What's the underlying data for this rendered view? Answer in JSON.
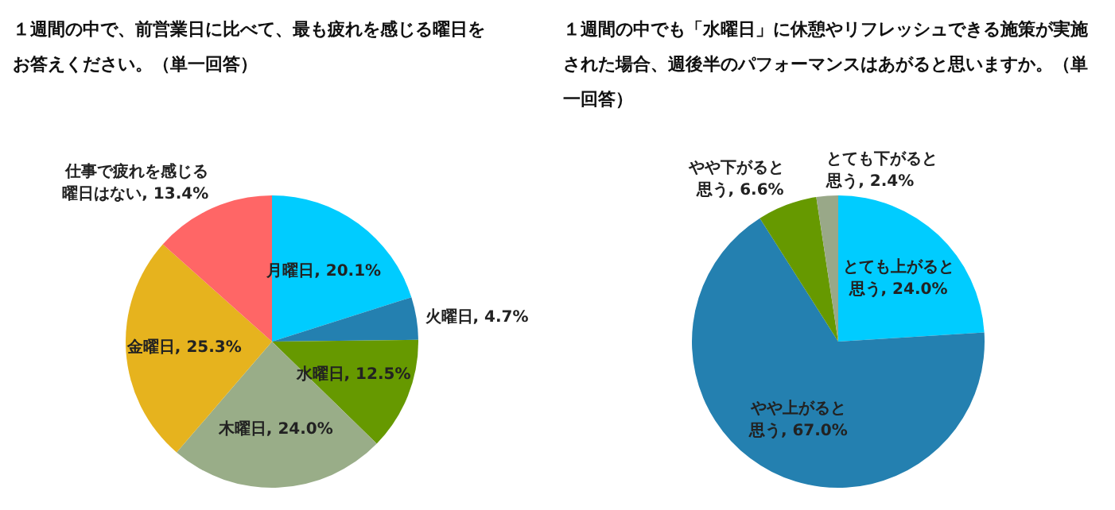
{
  "chart_data": [
    {
      "type": "pie",
      "title": "１週間の中で、前営業日に比べて、最も疲れを感じる曜日をお答えください。（単一回答）",
      "categories": [
        "月曜日",
        "火曜日",
        "水曜日",
        "木曜日",
        "金曜日",
        "仕事で疲れを感じる曜日はない"
      ],
      "values": [
        20.1,
        4.7,
        12.5,
        24.0,
        25.3,
        13.4
      ],
      "colors": [
        "#00ccff",
        "#2480b0",
        "#669900",
        "#99ad88",
        "#e6b31e",
        "#ff6666"
      ],
      "value_labels": [
        "20.1%",
        "4.7%",
        "12.5%",
        "24.0%",
        "25.3%",
        "13.4%"
      ]
    },
    {
      "type": "pie",
      "title": "１週間の中でも「水曜日」に休憩やリフレッシュできる施策が実施された場合、週後半のパフォーマンスはあがると思いますか。（単一回答）",
      "categories": [
        "とても上がると思う",
        "やや上がると思う",
        "やや下がると思う",
        "とても下がると思う"
      ],
      "values": [
        24.0,
        67.0,
        6.6,
        2.4
      ],
      "colors": [
        "#00ccff",
        "#2480b0",
        "#669900",
        "#99a888"
      ],
      "value_labels": [
        "24.0%",
        "67.0%",
        "6.6%",
        "2.4%"
      ]
    }
  ]
}
